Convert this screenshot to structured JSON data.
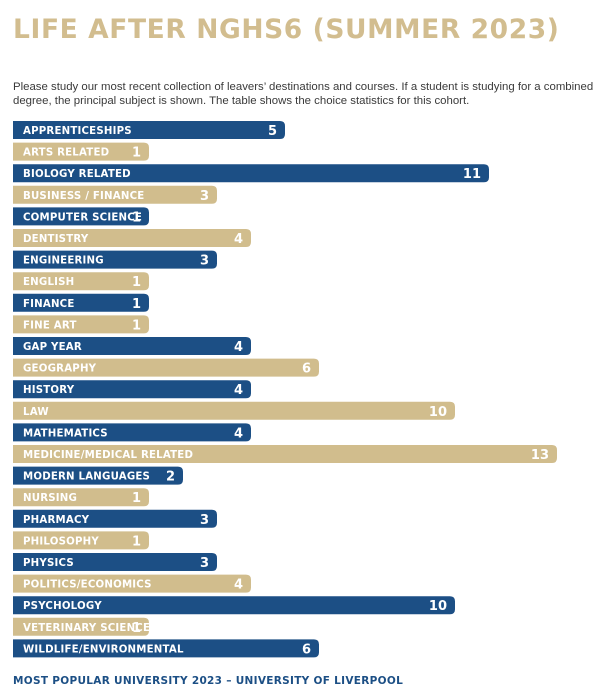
{
  "title": "LIFE AFTER NGHS6 (SUMMER 2023)",
  "intro": "Please study our most recent collection of leavers’ destinations and courses. If a student is studying for a combined degree, the principal subject is shown. The table shows the choice statistics for this cohort.",
  "footer": "MOST POPULAR UNIVERSITY 2023 – UNIVERSITY OF LIVERPOOL",
  "colors": {
    "title": "#d2bd8f",
    "blue": "#1c4f85",
    "gold": "#d1bd8d",
    "label": "#ffffff"
  },
  "chart_data": {
    "type": "bar",
    "orientation": "horizontal",
    "categories": [
      "APPRENTICESHIPS",
      "ARTS RELATED",
      "BIOLOGY RELATED",
      "BUSINESS / FINANCE",
      "COMPUTER SCIENCE",
      "DENTISTRY",
      "ENGINEERING",
      "ENGLISH",
      "FINANCE",
      "FINE ART",
      "GAP YEAR",
      "GEOGRAPHY",
      "HISTORY",
      "LAW",
      "MATHEMATICS",
      "MEDICINE/MEDICAL RELATED",
      "MODERN LANGUAGES",
      "NURSING",
      "PHARMACY",
      "PHILOSOPHY",
      "PHYSICS",
      "POLITICS/ECONOMICS",
      "PSYCHOLOGY",
      "VETERINARY SCIENCE",
      "WILDLIFE/ENVIRONMENTAL"
    ],
    "values": [
      5,
      1,
      11,
      3,
      1,
      4,
      3,
      1,
      1,
      1,
      4,
      6,
      4,
      10,
      4,
      13,
      2,
      1,
      3,
      1,
      3,
      4,
      10,
      1,
      6
    ],
    "bar_colors": [
      "blue",
      "gold",
      "blue",
      "gold",
      "blue",
      "gold",
      "blue",
      "gold",
      "blue",
      "gold",
      "blue",
      "gold",
      "blue",
      "gold",
      "blue",
      "gold",
      "blue",
      "gold",
      "blue",
      "gold",
      "blue",
      "gold",
      "blue",
      "gold",
      "blue"
    ],
    "data_labels": true,
    "grid": false,
    "legend": "none"
  }
}
